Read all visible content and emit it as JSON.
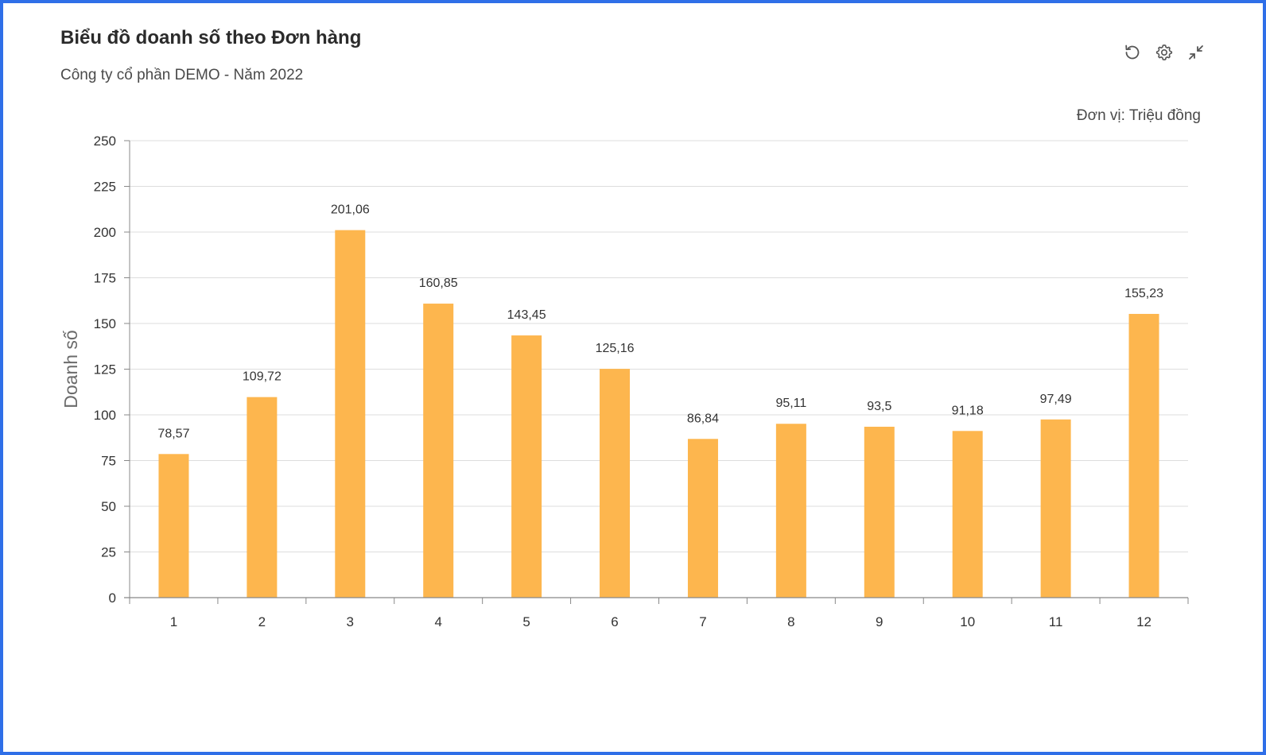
{
  "header": {
    "title": "Biểu đồ doanh số theo Đơn hàng",
    "subtitle": "Công ty cổ phần DEMO - Năm 2022",
    "unit_note": "Đơn vị: Triệu đồng"
  },
  "toolbar": {
    "icons": [
      "reset-icon",
      "settings-icon",
      "collapse-icon"
    ]
  },
  "chart_data": {
    "type": "bar",
    "title": "Biểu đồ doanh số theo Đơn hàng",
    "subtitle": "Công ty cổ phần DEMO - Năm 2022",
    "xlabel": "",
    "ylabel": "Doanh số",
    "ylim": [
      0,
      250
    ],
    "yticks": [
      0,
      25,
      50,
      75,
      100,
      125,
      150,
      175,
      200,
      225,
      250
    ],
    "grid": true,
    "categories": [
      "1",
      "2",
      "3",
      "4",
      "5",
      "6",
      "7",
      "8",
      "9",
      "10",
      "11",
      "12"
    ],
    "values": [
      78.57,
      109.72,
      201.06,
      160.85,
      143.45,
      125.16,
      86.84,
      95.11,
      93.5,
      91.18,
      97.49,
      155.23
    ],
    "value_labels": [
      "78,57",
      "109,72",
      "201,06",
      "160,85",
      "143,45",
      "125,16",
      "86,84",
      "95,11",
      "93,5",
      "91,18",
      "97,49",
      "155,23"
    ],
    "bar_color": "#fdb64e",
    "grid_color": "#dddddd",
    "axis_color": "#888888"
  }
}
